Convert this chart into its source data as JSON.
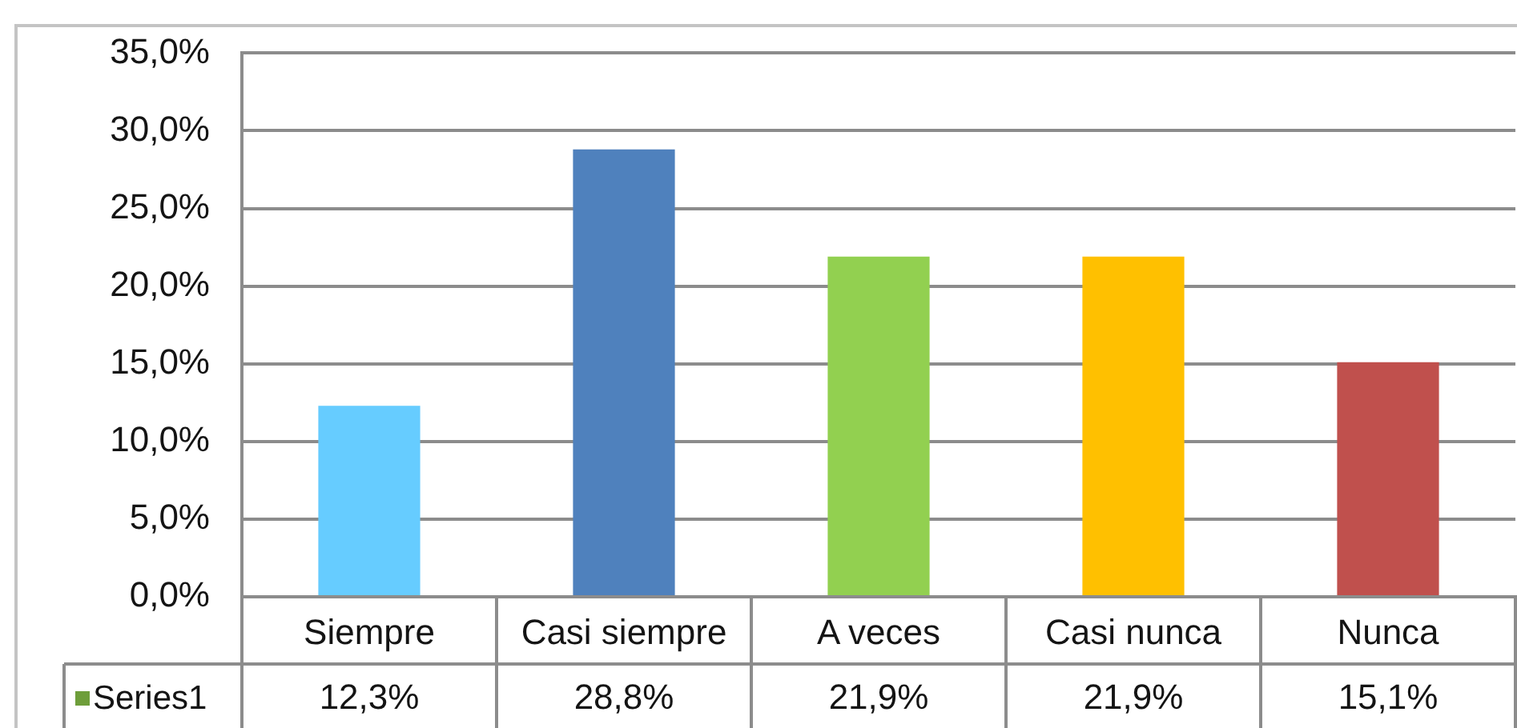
{
  "chart_data": {
    "type": "bar",
    "categories": [
      "Siempre",
      "Casi siempre",
      "A veces",
      "Casi nunca",
      "Nunca"
    ],
    "series": [
      {
        "name": "Series1",
        "color": "#6e9e3a",
        "colors": [
          "#66ccff",
          "#4f81bd",
          "#92d050",
          "#ffc000",
          "#c0504d"
        ],
        "values": [
          12.3,
          28.8,
          21.9,
          21.9,
          15.1
        ],
        "value_labels": [
          "12,3%",
          "28,8%",
          "21,9%",
          "21,9%",
          "15,1%"
        ]
      }
    ],
    "ylim": [
      0,
      35
    ],
    "yticks": [
      {
        "value": 0,
        "label": "0,0%"
      },
      {
        "value": 5,
        "label": "5,0%"
      },
      {
        "value": 10,
        "label": "10,0%"
      },
      {
        "value": 15,
        "label": "15,0%"
      },
      {
        "value": 20,
        "label": "20,0%"
      },
      {
        "value": 25,
        "label": "25,0%"
      },
      {
        "value": 30,
        "label": "30,0%"
      },
      {
        "value": 35,
        "label": "35,0%"
      }
    ],
    "grid": "y",
    "legend": "bottom left"
  }
}
